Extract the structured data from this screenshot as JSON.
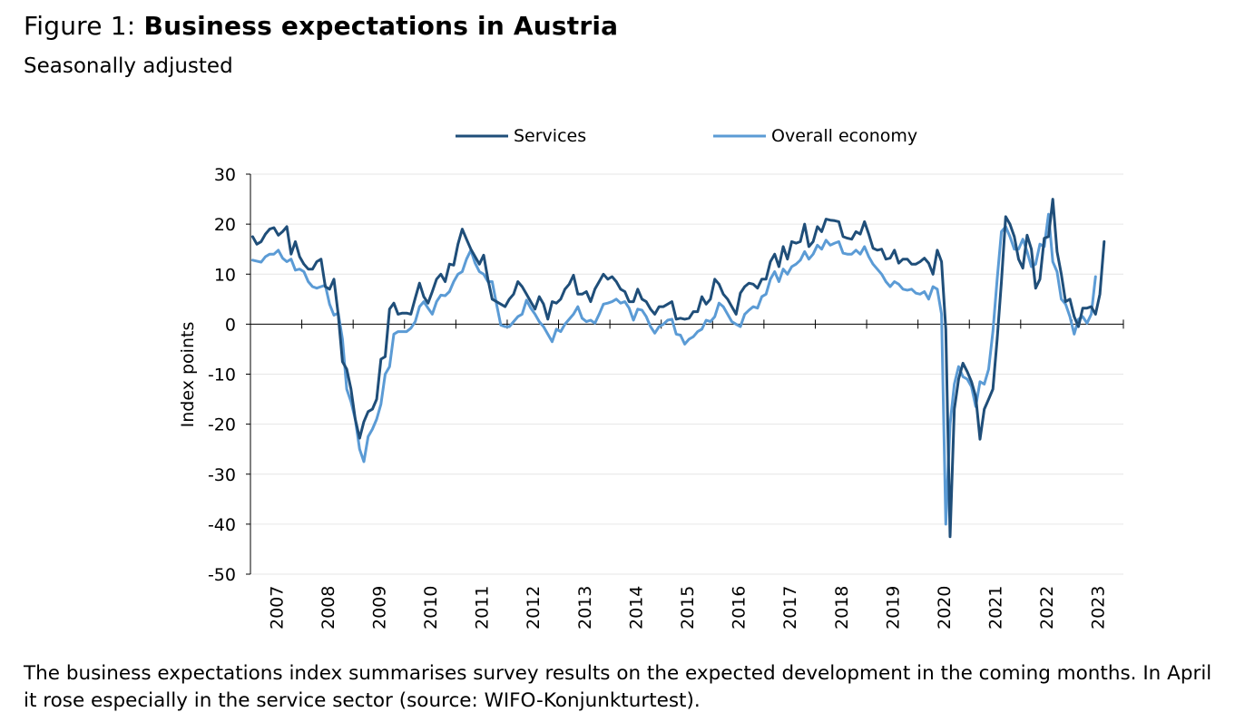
{
  "figure": {
    "prefix": "Figure 1: ",
    "title": "Business expectations in Austria",
    "subtitle": "Seasonally adjusted",
    "note": "The business expectations index summarises survey results on the expected development in the coming months. In April it rose especially in the service sector (source: WIFO-Konjunkturtest)."
  },
  "colors": {
    "services": "#1f4e79",
    "overall": "#5b9bd5",
    "grid": "#e6e6e6",
    "axis": "#000000"
  },
  "chart_data": {
    "type": "line",
    "title": "Business expectations in Austria",
    "subtitle": "Seasonally adjusted",
    "xlabel": "",
    "ylabel": "Index points",
    "ylim": [
      -50,
      30
    ],
    "yticks": [
      30,
      20,
      10,
      0,
      -10,
      -20,
      -30,
      -40,
      -50
    ],
    "xcategories": [
      "2007",
      "2008",
      "2009",
      "2010",
      "2011",
      "2012",
      "2013",
      "2014",
      "2015",
      "2016",
      "2017",
      "2018",
      "2019",
      "2020",
      "2021",
      "2022",
      "2023"
    ],
    "x_start": "2007-01",
    "frequency": "monthly",
    "grid": true,
    "legend": "top",
    "series": [
      {
        "name": "Services",
        "color": "#1f4e79",
        "values": [
          17.5,
          16,
          16.5,
          18,
          19,
          19.3,
          17.8,
          18.5,
          19.5,
          14,
          16.5,
          13.5,
          12,
          11,
          11,
          12.5,
          13,
          7.5,
          7,
          9,
          2,
          -7.5,
          -9,
          -13,
          -19,
          -22.8,
          -19.5,
          -17.5,
          -17,
          -15,
          -7,
          -6.5,
          3,
          4.2,
          2,
          2.2,
          2.2,
          2,
          5.2,
          8.2,
          5.5,
          4.2,
          6.5,
          9,
          10,
          8.5,
          12,
          11.8,
          16,
          19,
          17,
          15,
          13.5,
          12,
          13.8,
          9,
          5,
          4.5,
          4,
          3.5,
          5,
          6,
          8.5,
          7.5,
          6,
          4.5,
          3,
          5.5,
          4,
          1,
          4.5,
          4.2,
          5,
          7,
          8,
          9.8,
          6,
          6,
          6.5,
          4.5,
          7,
          8.5,
          10,
          9,
          9.5,
          8.5,
          7,
          6.5,
          4.5,
          4.5,
          7,
          5,
          4.5,
          3,
          2,
          3.5,
          3.5,
          4,
          4.5,
          1,
          1.2,
          1,
          1.2,
          2.5,
          2.5,
          5.5,
          4,
          5,
          9,
          8,
          6,
          5,
          3.5,
          2,
          6.2,
          7.5,
          8.2,
          8,
          7.2,
          9,
          9,
          12.5,
          14,
          11.5,
          15.5,
          13,
          16.5,
          16.2,
          16.5,
          20,
          15.5,
          16.5,
          19.5,
          18.5,
          21,
          20.8,
          20.7,
          20.5,
          17.5,
          17.2,
          17,
          18.5,
          18,
          20.5,
          18,
          15.2,
          14.8,
          15,
          13,
          13.2,
          14.8,
          12.2,
          13,
          13,
          12,
          12,
          12.5,
          13.2,
          12.2,
          10,
          14.8,
          12.5,
          -1,
          -42.5,
          -17,
          -11,
          -7.8,
          -9.5,
          -11.5,
          -14.5,
          -23,
          -17,
          -15,
          -13,
          -3,
          8.5,
          21.5,
          20,
          17.5,
          13,
          11.2,
          17.8,
          15,
          7.2,
          9,
          17.2,
          17.5,
          25,
          14.5,
          10,
          4.5,
          5,
          1.5,
          -0.5,
          3.2,
          3.2,
          3.5,
          2,
          6,
          16.5
        ]
      },
      {
        "name": "Overall economy",
        "color": "#5b9bd5",
        "values": [
          12.8,
          12.6,
          12.4,
          13.5,
          14,
          14,
          14.8,
          13.2,
          12.5,
          13,
          10.8,
          11,
          10.5,
          8.5,
          7.5,
          7.2,
          7.5,
          7.8,
          4,
          1.8,
          2.2,
          -3,
          -13,
          -15.5,
          -19,
          -25,
          -27.5,
          -22.5,
          -21,
          -19,
          -16,
          -10,
          -8.5,
          -2,
          -1.5,
          -1.5,
          -1.5,
          -0.8,
          0.5,
          3.5,
          4.5,
          3.2,
          2,
          4.5,
          5.8,
          5.7,
          6.5,
          8.5,
          10,
          10.5,
          13,
          14.8,
          12.2,
          10.5,
          10,
          8.5,
          8.5,
          4,
          -0.2,
          -0.5,
          -0.5,
          0.5,
          1.5,
          2,
          4.8,
          3.2,
          2,
          0.5,
          -0.5,
          -2,
          -3.5,
          -1,
          -1.5,
          0,
          1,
          2,
          3.5,
          1.2,
          0.5,
          0.8,
          0.2,
          2,
          4,
          4.2,
          4.5,
          5,
          4.2,
          4.5,
          3.2,
          0.8,
          3,
          2.8,
          1.5,
          -0.5,
          -1.8,
          -0.5,
          0,
          0.8,
          1,
          -2,
          -2.2,
          -4,
          -3,
          -2.5,
          -1.5,
          -1,
          0.8,
          0.5,
          1.5,
          4.2,
          3.5,
          2,
          0.5,
          0,
          -0.5,
          2,
          2.8,
          3.5,
          3.2,
          5.5,
          6,
          9,
          10.5,
          8.5,
          11,
          10,
          11.5,
          12,
          12.8,
          14.5,
          13,
          14,
          15.8,
          15,
          16.8,
          15.8,
          16.2,
          16.5,
          14.2,
          14,
          14,
          14.8,
          14,
          15.5,
          13.5,
          12,
          11,
          10,
          8.5,
          7.5,
          8.5,
          8,
          7,
          6.8,
          7,
          6.2,
          6,
          6.5,
          5,
          7.5,
          7,
          2,
          -40,
          -20,
          -12,
          -8.5,
          -10.5,
          -11,
          -12.5,
          -16.5,
          -11.5,
          -12,
          -9,
          -1.5,
          9,
          18.5,
          19.5,
          17.5,
          15,
          15,
          17,
          14.5,
          11.5,
          12,
          16,
          15.5,
          22,
          12.5,
          10.5,
          5,
          4,
          1.5,
          -2,
          1,
          1.5,
          0.2,
          2,
          9.5
        ]
      }
    ]
  }
}
